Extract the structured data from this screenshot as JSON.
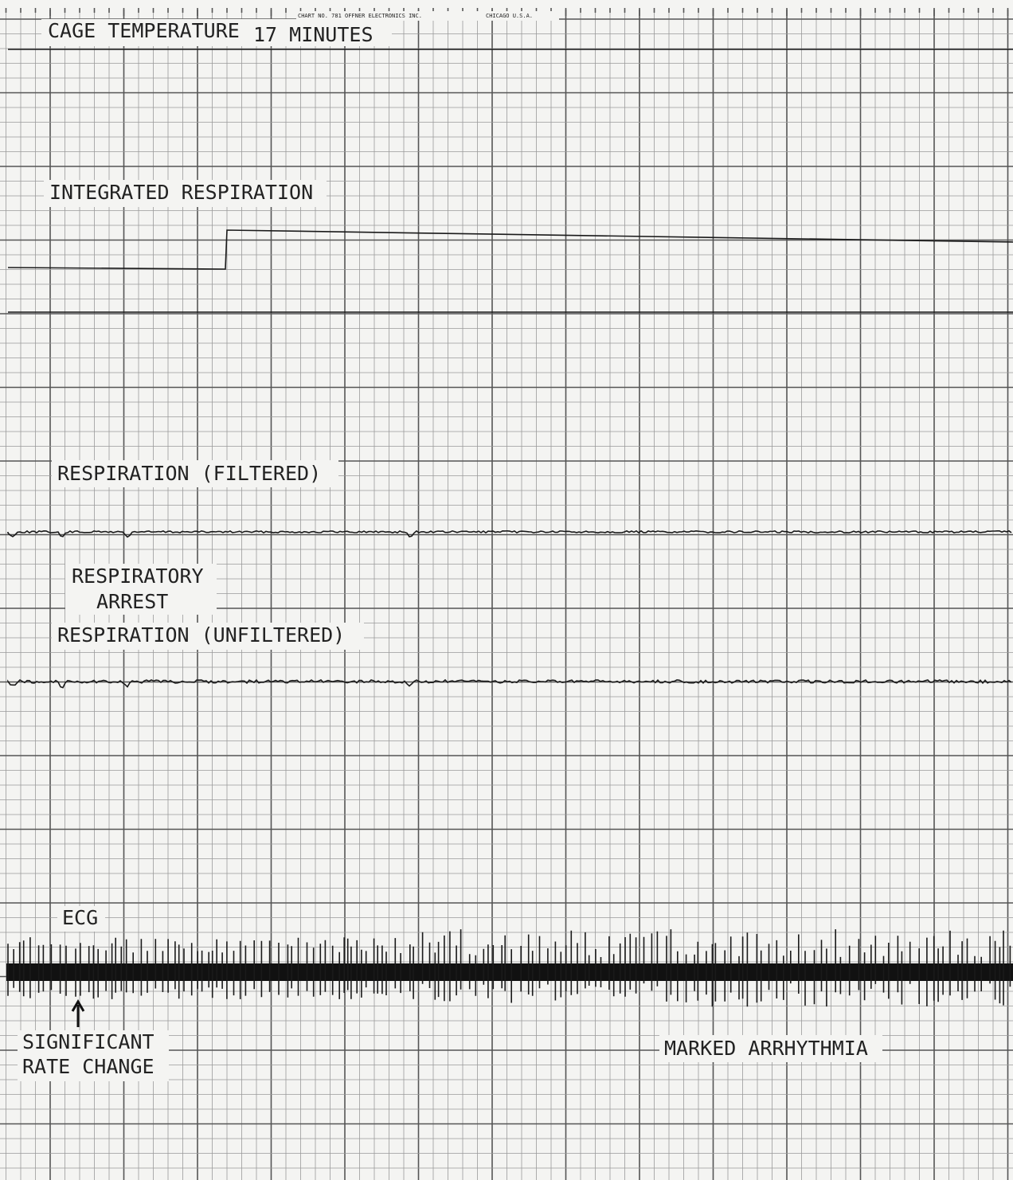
{
  "header": {
    "chart_no": "CHART NO. 781 OFFNER ELECTRONICS INC.",
    "city": "CHICAGO U.S.A."
  },
  "channels": [
    {
      "label": "CAGE TEMPERATURE",
      "note": "17 MINUTES"
    },
    {
      "label": "INTEGRATED RESPIRATION"
    },
    {
      "label": "RESPIRATION (FILTERED)"
    },
    {
      "label": "RESPIRATION (UNFILTERED)"
    },
    {
      "label": "ECG"
    }
  ],
  "annotations": [
    {
      "lines": [
        "RESPIRATORY",
        "ARREST"
      ]
    },
    {
      "lines": [
        "SIGNIFICANT",
        "RATE CHANGE"
      ]
    },
    {
      "lines": [
        "MARKED ARRHYTHMIA"
      ]
    }
  ]
}
